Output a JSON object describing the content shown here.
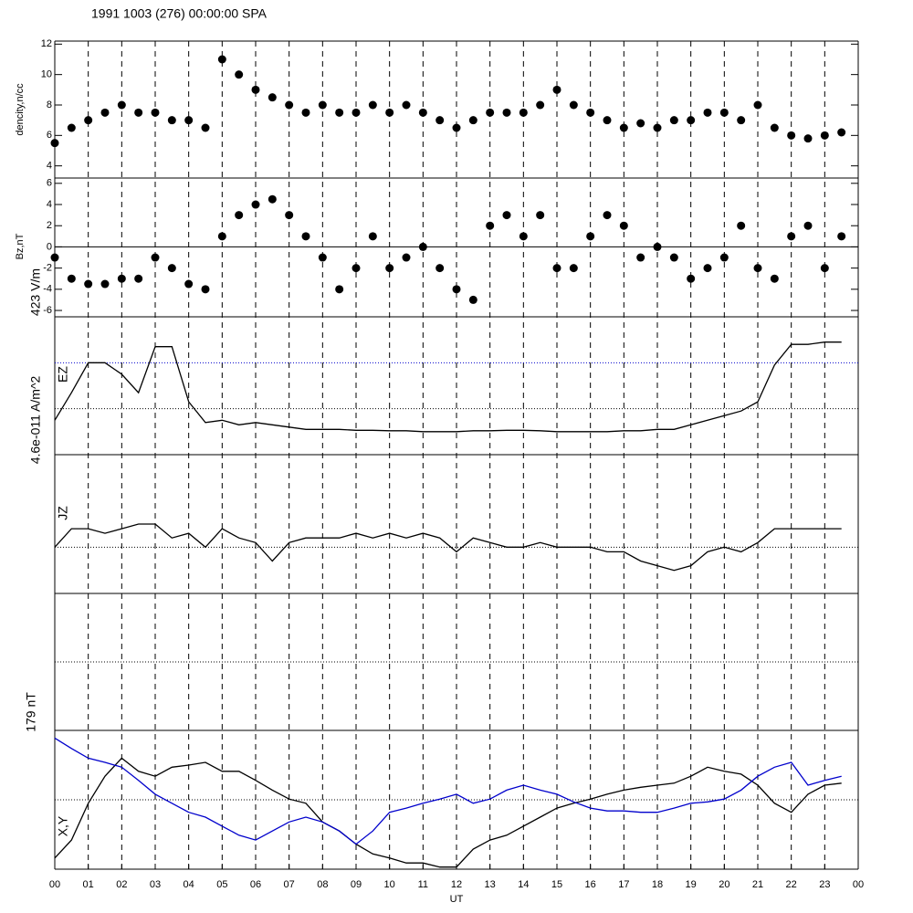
{
  "chart_data": [
    {
      "type": "scatter",
      "title": "1991 1003 (276) 00:00:00 SPA",
      "ylabel": "dencity,n/cc",
      "color": "#000000",
      "x": [
        0,
        0.5,
        1,
        1.5,
        2,
        2.5,
        3,
        3.5,
        4,
        4.5,
        5,
        5.5,
        6,
        6.5,
        7,
        7.5,
        8,
        8.5,
        9,
        9.5,
        10,
        10.5,
        11,
        11.5,
        12,
        12.5,
        13,
        13.5,
        14,
        14.5,
        15,
        15.5,
        16,
        16.5,
        17,
        17.5,
        18,
        18.5,
        19,
        19.5,
        20,
        20.5,
        21,
        21.5,
        22,
        22.5,
        23,
        23.5
      ],
      "values": [
        5.5,
        6.5,
        7,
        7.5,
        8,
        7.5,
        7.5,
        7,
        7,
        6.5,
        11,
        10,
        9,
        8.5,
        8,
        7.5,
        8,
        7.5,
        7.5,
        8,
        7.5,
        8,
        7.5,
        7,
        6.5,
        7,
        7.5,
        7.5,
        7.5,
        8,
        9,
        8,
        7.5,
        7,
        6.5,
        6.8,
        6.5,
        7,
        7,
        7.5,
        7.5,
        7,
        8,
        6.5,
        6,
        5.8,
        6,
        6.2
      ],
      "xlim": [
        0,
        24
      ],
      "ylim": [
        3.2,
        12.2
      ],
      "yticks": [
        4,
        6,
        8,
        10,
        12
      ]
    },
    {
      "type": "scatter",
      "ylabel": "Bz,nT",
      "color": "#000000",
      "x": [
        0,
        0.5,
        1,
        1.5,
        2,
        2.5,
        3,
        3.5,
        4,
        4.5,
        5,
        5.5,
        6,
        6.5,
        7,
        7.5,
        8,
        8.5,
        9,
        9.5,
        10,
        10.5,
        11,
        11.5,
        12,
        12.5,
        13,
        13.5,
        14,
        14.5,
        15,
        15.5,
        16,
        16.5,
        17,
        17.5,
        18,
        18.5,
        19,
        19.5,
        20,
        20.5,
        21,
        21.5,
        22,
        22.5,
        23,
        23.5
      ],
      "values": [
        -1,
        -3,
        -3.5,
        -3.5,
        -3,
        -3,
        -1,
        -2,
        -3.5,
        -4,
        1,
        3,
        4,
        4.5,
        3,
        1,
        -1,
        -4,
        -2,
        1,
        -2,
        -1,
        0,
        -2,
        -4,
        -5,
        2,
        3,
        1,
        3,
        -2,
        -2,
        1,
        3,
        2,
        -1,
        0,
        -1,
        -3,
        -2,
        -1,
        2,
        -2,
        -3,
        1,
        2,
        -2,
        1
      ],
      "xlim": [
        0,
        24
      ],
      "ylim": [
        -6.6,
        6.5
      ],
      "yticks": [
        -6,
        -4,
        -2,
        0,
        2,
        4,
        6
      ],
      "ref_lines": [
        {
          "value": 0,
          "color": "#000000",
          "style": "solid"
        }
      ]
    },
    {
      "type": "line",
      "ylabel": "423 V/m",
      "label": "EZ",
      "x": [
        0,
        0.5,
        1,
        1.5,
        2,
        2.5,
        3,
        3.5,
        4,
        4.5,
        5,
        5.5,
        6,
        6.5,
        7,
        7.5,
        8,
        8.5,
        9,
        9.5,
        10,
        10.5,
        11,
        11.5,
        12,
        12.5,
        13,
        13.5,
        14,
        14.5,
        15,
        15.5,
        16,
        16.5,
        17,
        17.5,
        18,
        18.5,
        19,
        19.5,
        20,
        20.5,
        21,
        21.5,
        22,
        22.5,
        23,
        23.5
      ],
      "series": [
        {
          "color": "#000000",
          "values": [
            0.75,
            1.35,
            2.0,
            2.0,
            1.75,
            1.35,
            2.35,
            2.35,
            1.15,
            0.7,
            0.75,
            0.65,
            0.7,
            0.65,
            0.6,
            0.55,
            0.55,
            0.55,
            0.53,
            0.53,
            0.52,
            0.52,
            0.5,
            0.5,
            0.5,
            0.52,
            0.52,
            0.53,
            0.53,
            0.52,
            0.5,
            0.5,
            0.5,
            0.5,
            0.52,
            0.52,
            0.55,
            0.55,
            0.65,
            0.75,
            0.85,
            0.95,
            1.15,
            1.95,
            2.4,
            2.4,
            2.45,
            2.45
          ]
        }
      ],
      "xlim": [
        0,
        24
      ],
      "ylim": [
        0,
        3
      ],
      "ref_lines": [
        {
          "value": 1,
          "color": "#000000",
          "style": "dotted"
        },
        {
          "value": 2,
          "color": "#0000cc",
          "style": "dotted"
        }
      ]
    },
    {
      "type": "line",
      "ylabel": "4.6e-011 A/m^2",
      "label": "JZ",
      "x": [
        0,
        0.5,
        1,
        1.5,
        2,
        2.5,
        3,
        3.5,
        4,
        4.5,
        5,
        5.5,
        6,
        6.5,
        7,
        7.5,
        8,
        8.5,
        9,
        9.5,
        10,
        10.5,
        11,
        11.5,
        12,
        12.5,
        13,
        13.5,
        14,
        14.5,
        15,
        15.5,
        16,
        16.5,
        17,
        17.5,
        18,
        18.5,
        19,
        19.5,
        20,
        20.5,
        21,
        21.5,
        22,
        22.5,
        23,
        23.5
      ],
      "series": [
        {
          "color": "#000000",
          "values": [
            1.0,
            1.4,
            1.4,
            1.3,
            1.4,
            1.5,
            1.5,
            1.2,
            1.3,
            1.0,
            1.4,
            1.2,
            1.1,
            0.7,
            1.1,
            1.2,
            1.2,
            1.2,
            1.3,
            1.2,
            1.3,
            1.2,
            1.3,
            1.2,
            0.9,
            1.2,
            1.1,
            1.0,
            1.0,
            1.1,
            1.0,
            1.0,
            1.0,
            0.9,
            0.9,
            0.7,
            0.6,
            0.5,
            0.6,
            0.9,
            1.0,
            0.9,
            1.1,
            1.4,
            1.4,
            1.4,
            1.4,
            1.4
          ]
        }
      ],
      "xlim": [
        0,
        24
      ],
      "ylim": [
        0,
        3
      ],
      "ref_lines": [
        {
          "value": 1,
          "color": "#000000",
          "style": "dotted"
        }
      ]
    },
    {
      "type": "line",
      "ylabel": "179 nT",
      "label": "X,Y",
      "xlabel": "UT",
      "grid": true,
      "x": [
        0,
        0.5,
        1,
        1.5,
        2,
        2.5,
        3,
        3.5,
        4,
        4.5,
        5,
        5.5,
        6,
        6.5,
        7,
        7.5,
        8,
        8.5,
        9,
        9.5,
        10,
        10.5,
        11,
        11.5,
        12,
        12.5,
        13,
        13.5,
        14,
        14.5,
        15,
        15.5,
        16,
        16.5,
        17,
        17.5,
        18,
        18.5,
        19,
        19.5,
        20,
        20.5,
        21,
        21.5,
        22,
        22.5,
        23,
        23.5
      ],
      "series": [
        {
          "color": "#000000",
          "values": [
            0.16,
            0.42,
            0.95,
            1.34,
            1.6,
            1.41,
            1.34,
            1.47,
            1.5,
            1.54,
            1.41,
            1.41,
            1.28,
            1.14,
            1.01,
            0.95,
            0.68,
            0.55,
            0.36,
            0.22,
            0.16,
            0.09,
            0.09,
            0.03,
            0.03,
            0.29,
            0.42,
            0.49,
            0.62,
            0.75,
            0.88,
            0.95,
            1.01,
            1.08,
            1.14,
            1.18,
            1.21,
            1.24,
            1.34,
            1.47,
            1.41,
            1.37,
            1.21,
            0.95,
            0.82,
            1.08,
            1.21,
            1.24
          ]
        },
        {
          "color": "#0000cc",
          "values": [
            1.89,
            1.74,
            1.6,
            1.54,
            1.47,
            1.28,
            1.08,
            0.95,
            0.82,
            0.75,
            0.62,
            0.49,
            0.42,
            0.55,
            0.68,
            0.75,
            0.68,
            0.55,
            0.36,
            0.55,
            0.82,
            0.88,
            0.95,
            1.01,
            1.08,
            0.95,
            1.01,
            1.14,
            1.21,
            1.14,
            1.08,
            0.97,
            0.88,
            0.84,
            0.84,
            0.82,
            0.82,
            0.88,
            0.95,
            0.97,
            1.01,
            1.14,
            1.34,
            1.47,
            1.54,
            1.21,
            1.28,
            1.34
          ]
        }
      ],
      "xlim": [
        0,
        24
      ],
      "ylim": [
        0,
        2
      ],
      "ref_lines": [
        {
          "value": 1,
          "color": "#000000",
          "style": "dotted"
        }
      ],
      "xticks": [
        {
          "value": 0,
          "label": "00"
        },
        {
          "value": 1,
          "label": "01"
        },
        {
          "value": 2,
          "label": "02"
        },
        {
          "value": 3,
          "label": "03"
        },
        {
          "value": 4,
          "label": "04"
        },
        {
          "value": 5,
          "label": "05"
        },
        {
          "value": 6,
          "label": "06"
        },
        {
          "value": 7,
          "label": "07"
        },
        {
          "value": 8,
          "label": "08"
        },
        {
          "value": 9,
          "label": "09"
        },
        10,
        11,
        12,
        13,
        14,
        15,
        16,
        17,
        18,
        19,
        20,
        21,
        22,
        23,
        {
          "value": 24,
          "label": "00"
        }
      ]
    }
  ]
}
